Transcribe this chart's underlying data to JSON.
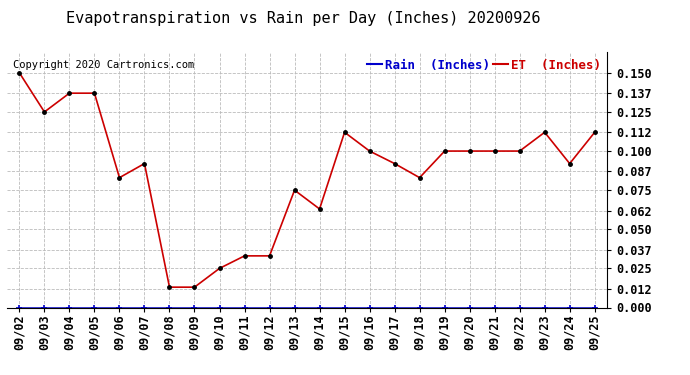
{
  "title": "Evapotranspiration vs Rain per Day (Inches) 20200926",
  "copyright": "Copyright 2020 Cartronics.com",
  "legend_rain": "Rain  (Inches)",
  "legend_et": "ET  (Inches)",
  "dates": [
    "09/02",
    "09/03",
    "09/04",
    "09/05",
    "09/06",
    "09/07",
    "09/08",
    "09/09",
    "09/10",
    "09/11",
    "09/12",
    "09/13",
    "09/14",
    "09/15",
    "09/16",
    "09/17",
    "09/18",
    "09/19",
    "09/20",
    "09/21",
    "09/22",
    "09/23",
    "09/24",
    "09/25"
  ],
  "et_values": [
    0.15,
    0.125,
    0.137,
    0.137,
    0.083,
    0.092,
    0.013,
    0.013,
    0.025,
    0.033,
    0.033,
    0.075,
    0.063,
    0.112,
    0.1,
    0.092,
    0.083,
    0.1,
    0.1,
    0.1,
    0.1,
    0.112,
    0.092,
    0.112
  ],
  "rain_values": [
    0.0,
    0.0,
    0.0,
    0.0,
    0.0,
    0.0,
    0.0,
    0.0,
    0.0,
    0.0,
    0.0,
    0.0,
    0.0,
    0.0,
    0.0,
    0.0,
    0.0,
    0.0,
    0.0,
    0.0,
    0.0,
    0.0,
    0.0,
    0.0
  ],
  "et_color": "#cc0000",
  "rain_color": "#0000cc",
  "ylim": [
    0.0,
    0.163
  ],
  "yticks": [
    0.0,
    0.012,
    0.025,
    0.037,
    0.05,
    0.062,
    0.075,
    0.087,
    0.1,
    0.112,
    0.125,
    0.137,
    0.15
  ],
  "bg_color": "#ffffff",
  "grid_color": "#bbbbbb",
  "title_fontsize": 11,
  "legend_fontsize": 9,
  "tick_fontsize": 8.5,
  "copyright_fontsize": 7.5
}
